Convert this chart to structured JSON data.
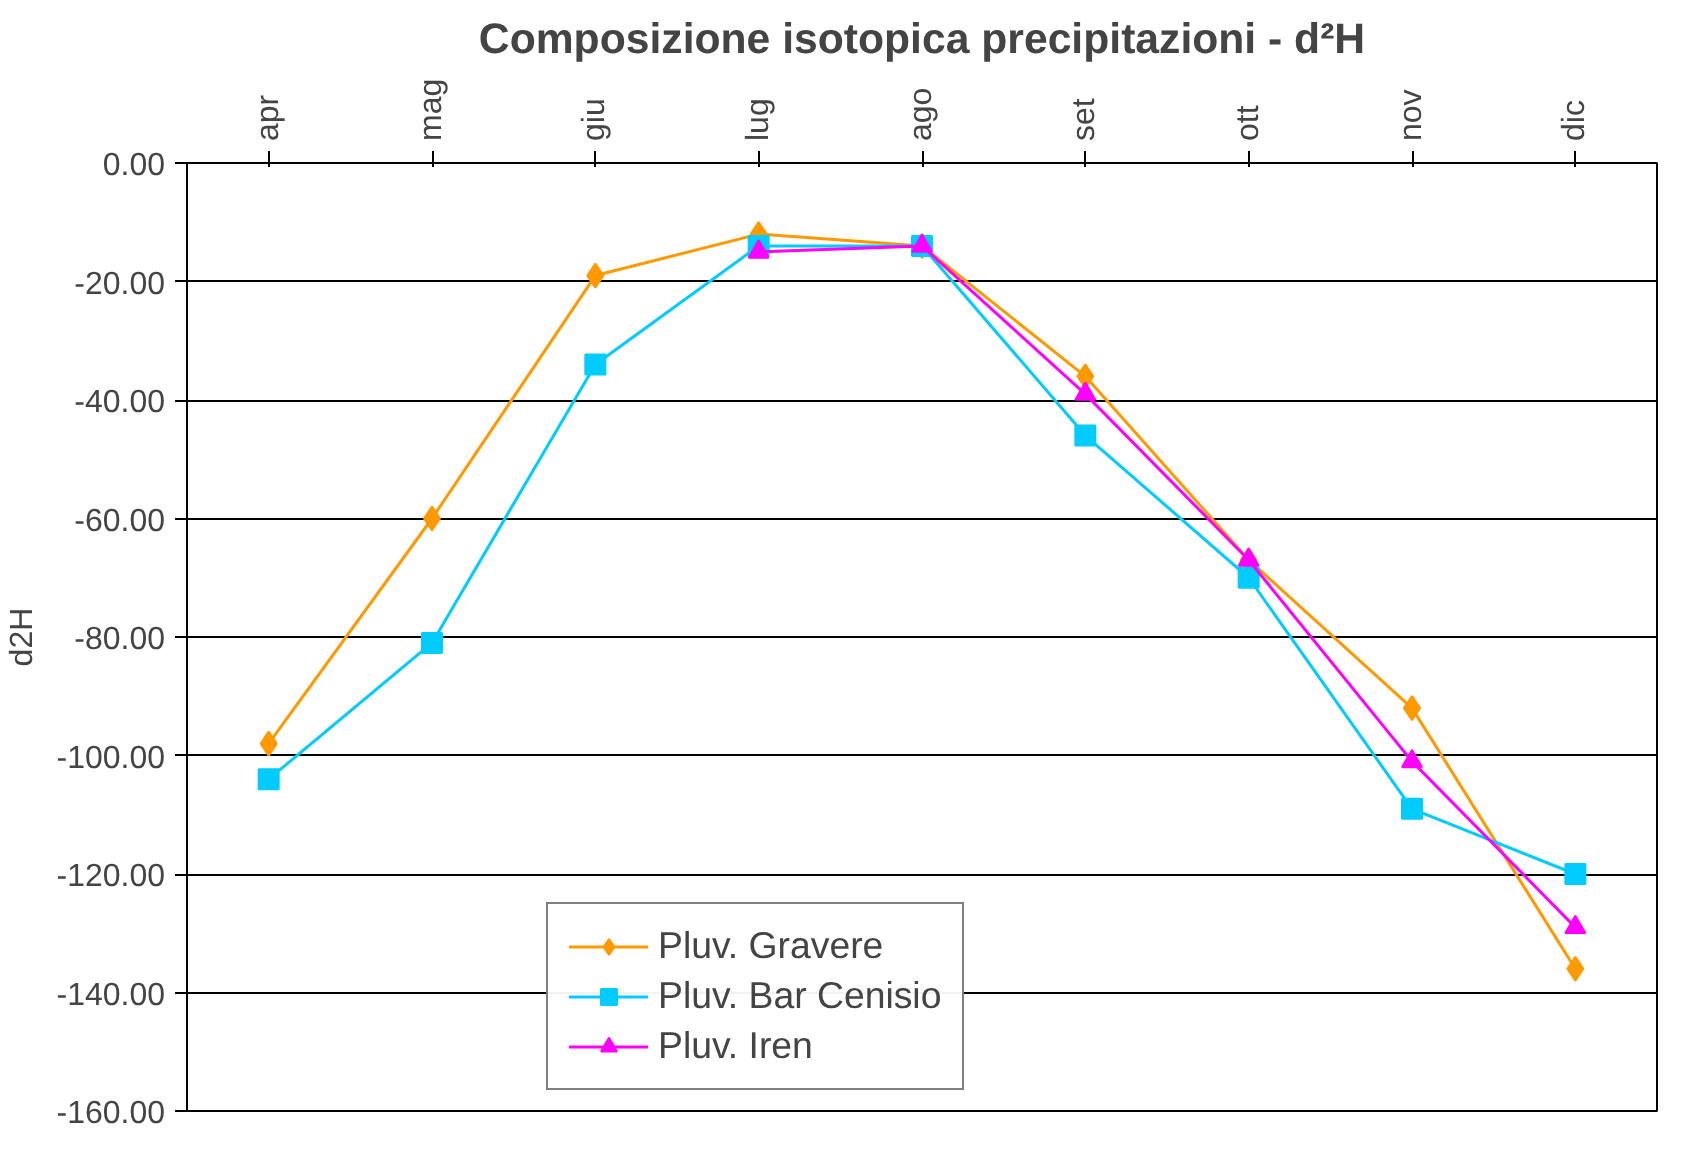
{
  "chart_data": {
    "type": "line",
    "title": "Composizione isotopica precipitazioni - d²H",
    "ylabel": "d2H",
    "categories": [
      "apr",
      "mag",
      "giu",
      "lug",
      "ago",
      "set",
      "ott",
      "nov",
      "dic"
    ],
    "series": [
      {
        "name": "Pluv. Gravere",
        "color": "#ff9900",
        "marker": "diamond",
        "values": [
          -98,
          -60,
          -19,
          -12,
          -14,
          -36,
          -67,
          -92,
          -136
        ]
      },
      {
        "name": "Pluv. Bar Cenisio",
        "color": "#00ccff",
        "marker": "square",
        "values": [
          -104,
          -81,
          -34,
          -14,
          -14,
          -46,
          -70,
          -109,
          -120
        ]
      },
      {
        "name": "Pluv. Iren",
        "color": "#ff00ff",
        "marker": "triangle",
        "values": [
          null,
          null,
          null,
          -15,
          -14,
          -39,
          -67,
          -101,
          -129
        ]
      }
    ],
    "ylim": [
      -160,
      0
    ],
    "yticks": [
      {
        "value": 0,
        "label": "0.00"
      },
      {
        "value": -20,
        "label": "-20.00"
      },
      {
        "value": -40,
        "label": "-40.00"
      },
      {
        "value": -60,
        "label": "-60.00"
      },
      {
        "value": -80,
        "label": "-80.00"
      },
      {
        "value": -100,
        "label": "-100.00"
      },
      {
        "value": -120,
        "label": "-120.00"
      },
      {
        "value": -140,
        "label": "-140.00"
      },
      {
        "value": -160,
        "label": "-160.00"
      }
    ],
    "grid": "y",
    "legend": "bottom"
  }
}
